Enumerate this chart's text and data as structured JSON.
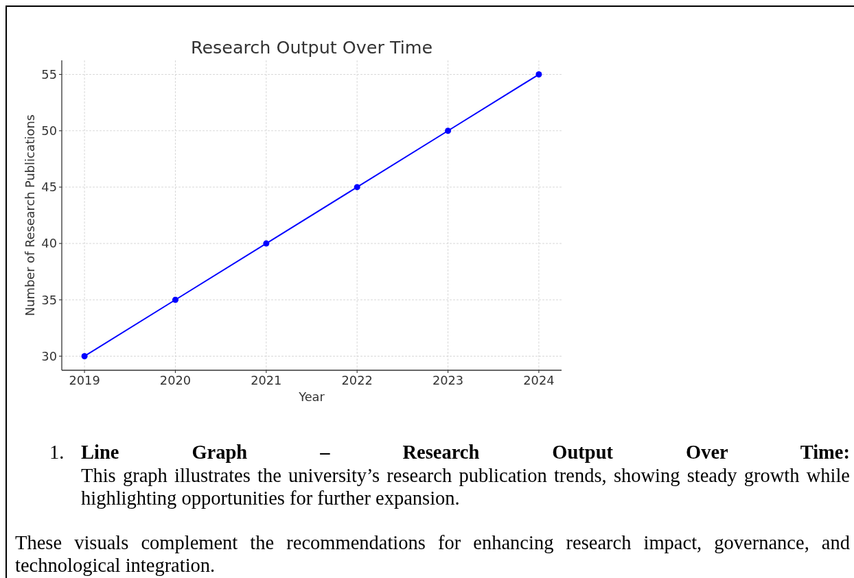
{
  "chart_data": {
    "type": "line",
    "title": "Research Output Over Time",
    "xlabel": "Year",
    "ylabel": "Number of Research Publications",
    "x": [
      2019,
      2020,
      2021,
      2022,
      2023,
      2024
    ],
    "series": [
      {
        "color": "#0000ff",
        "values": [
          30,
          35,
          40,
          45,
          50,
          55
        ]
      }
    ],
    "xlim": [
      2018.75,
      2024.25
    ],
    "xticks": [
      2019,
      2020,
      2021,
      2022,
      2023,
      2024
    ],
    "ylim": [
      28.75,
      56.25
    ],
    "yticks": [
      30,
      35,
      40,
      45,
      50,
      55
    ],
    "grid": true,
    "marker": "circle",
    "line_style": "solid",
    "annotations": [
      "1.",
      "Line Graph – Research Output Over Time:",
      "This graph illustrates the university’s research publication trends, showing steady growth while highlighting opportunities for further expansion.",
      "These visuals complement the recommendations for enhancing research impact, governance, and technological integration."
    ]
  }
}
